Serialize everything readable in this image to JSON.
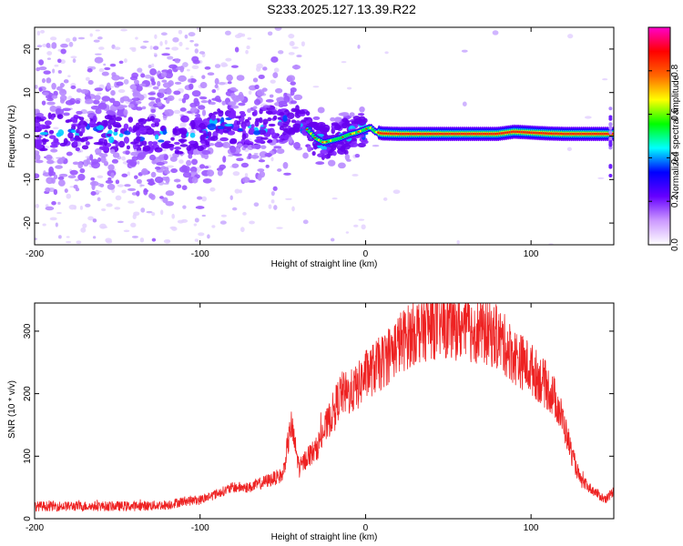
{
  "title": "S233.2025.127.13.39.R22",
  "chart_data": [
    {
      "type": "heatmap",
      "xlabel": "Height of straight line (km)",
      "ylabel": "Frequency (Hz)",
      "xlim": [
        -200,
        150
      ],
      "ylim": [
        -25,
        25
      ],
      "xticks": [
        -200,
        -100,
        0,
        100
      ],
      "xtick_labels": [
        "-200",
        "-100",
        "0",
        "100"
      ],
      "yticks": [
        -20,
        -10,
        0,
        10,
        20
      ],
      "ytick_labels": [
        "-20",
        "-10",
        "0",
        "10",
        "20"
      ],
      "colorbar": {
        "label": "Normalized spectral amplitude",
        "range": [
          0,
          1
        ],
        "ticks": [
          0.0,
          0.2,
          0.4,
          0.6,
          0.8
        ],
        "tick_labels": [
          "0.0",
          "0.2",
          "0.4",
          "0.6",
          "0.8"
        ],
        "colors": [
          "#ffffff",
          "#cc99ff",
          "#6600ff",
          "#0000ff",
          "#00ffff",
          "#00ff00",
          "#ffff00",
          "#ff6600",
          "#ff0000",
          "#ff00cc"
        ]
      },
      "ridge": {
        "x": [
          -200,
          -180,
          -160,
          -140,
          -120,
          -100,
          -90,
          -80,
          -70,
          -60,
          -50,
          -45,
          -40,
          -35,
          -30,
          -25,
          -20,
          -15,
          -10,
          -5,
          0,
          3,
          6,
          10,
          20,
          40,
          60,
          80,
          90,
          100,
          110,
          120,
          130,
          140,
          150
        ],
        "y": [
          0.5,
          1.0,
          0.5,
          0.5,
          0.0,
          0.5,
          3.5,
          2.5,
          1.5,
          2.5,
          3.0,
          4.0,
          3.0,
          1.5,
          -0.5,
          -1.5,
          -1.0,
          -0.5,
          0.3,
          0.8,
          1.5,
          2.0,
          1.0,
          0.6,
          0.5,
          0.5,
          0.5,
          0.5,
          1.0,
          0.8,
          0.6,
          0.5,
          0.5,
          0.5,
          0.5
        ]
      }
    },
    {
      "type": "line",
      "xlabel": "Height of straight line (km)",
      "ylabel": "SNR (10 * v/v)",
      "xlim": [
        -200,
        150
      ],
      "ylim": [
        0,
        345
      ],
      "xticks": [
        -200,
        -100,
        0,
        100
      ],
      "xtick_labels": [
        "-200",
        "-100",
        "0",
        "100"
      ],
      "yticks": [
        0,
        100,
        200,
        300
      ],
      "ytick_labels": [
        "0",
        "100",
        "200",
        "300"
      ],
      "color": "#ee2222",
      "series": [
        {
          "x": [
            -200,
            -180,
            -160,
            -140,
            -120,
            -110,
            -100,
            -90,
            -80,
            -70,
            -60,
            -50,
            -45,
            -40,
            -35,
            -30,
            -25,
            -20,
            -15,
            -10,
            -5,
            0,
            10,
            20,
            30,
            40,
            50,
            60,
            70,
            80,
            90,
            100,
            110,
            115,
            120,
            125,
            130,
            140,
            145,
            150
          ],
          "y": [
            20,
            20,
            20,
            20,
            22,
            28,
            30,
            40,
            50,
            50,
            60,
            70,
            150,
            80,
            100,
            110,
            140,
            170,
            200,
            200,
            210,
            230,
            250,
            280,
            300,
            310,
            310,
            305,
            300,
            290,
            260,
            240,
            210,
            190,
            150,
            100,
            60,
            40,
            30,
            45
          ]
        }
      ]
    }
  ]
}
